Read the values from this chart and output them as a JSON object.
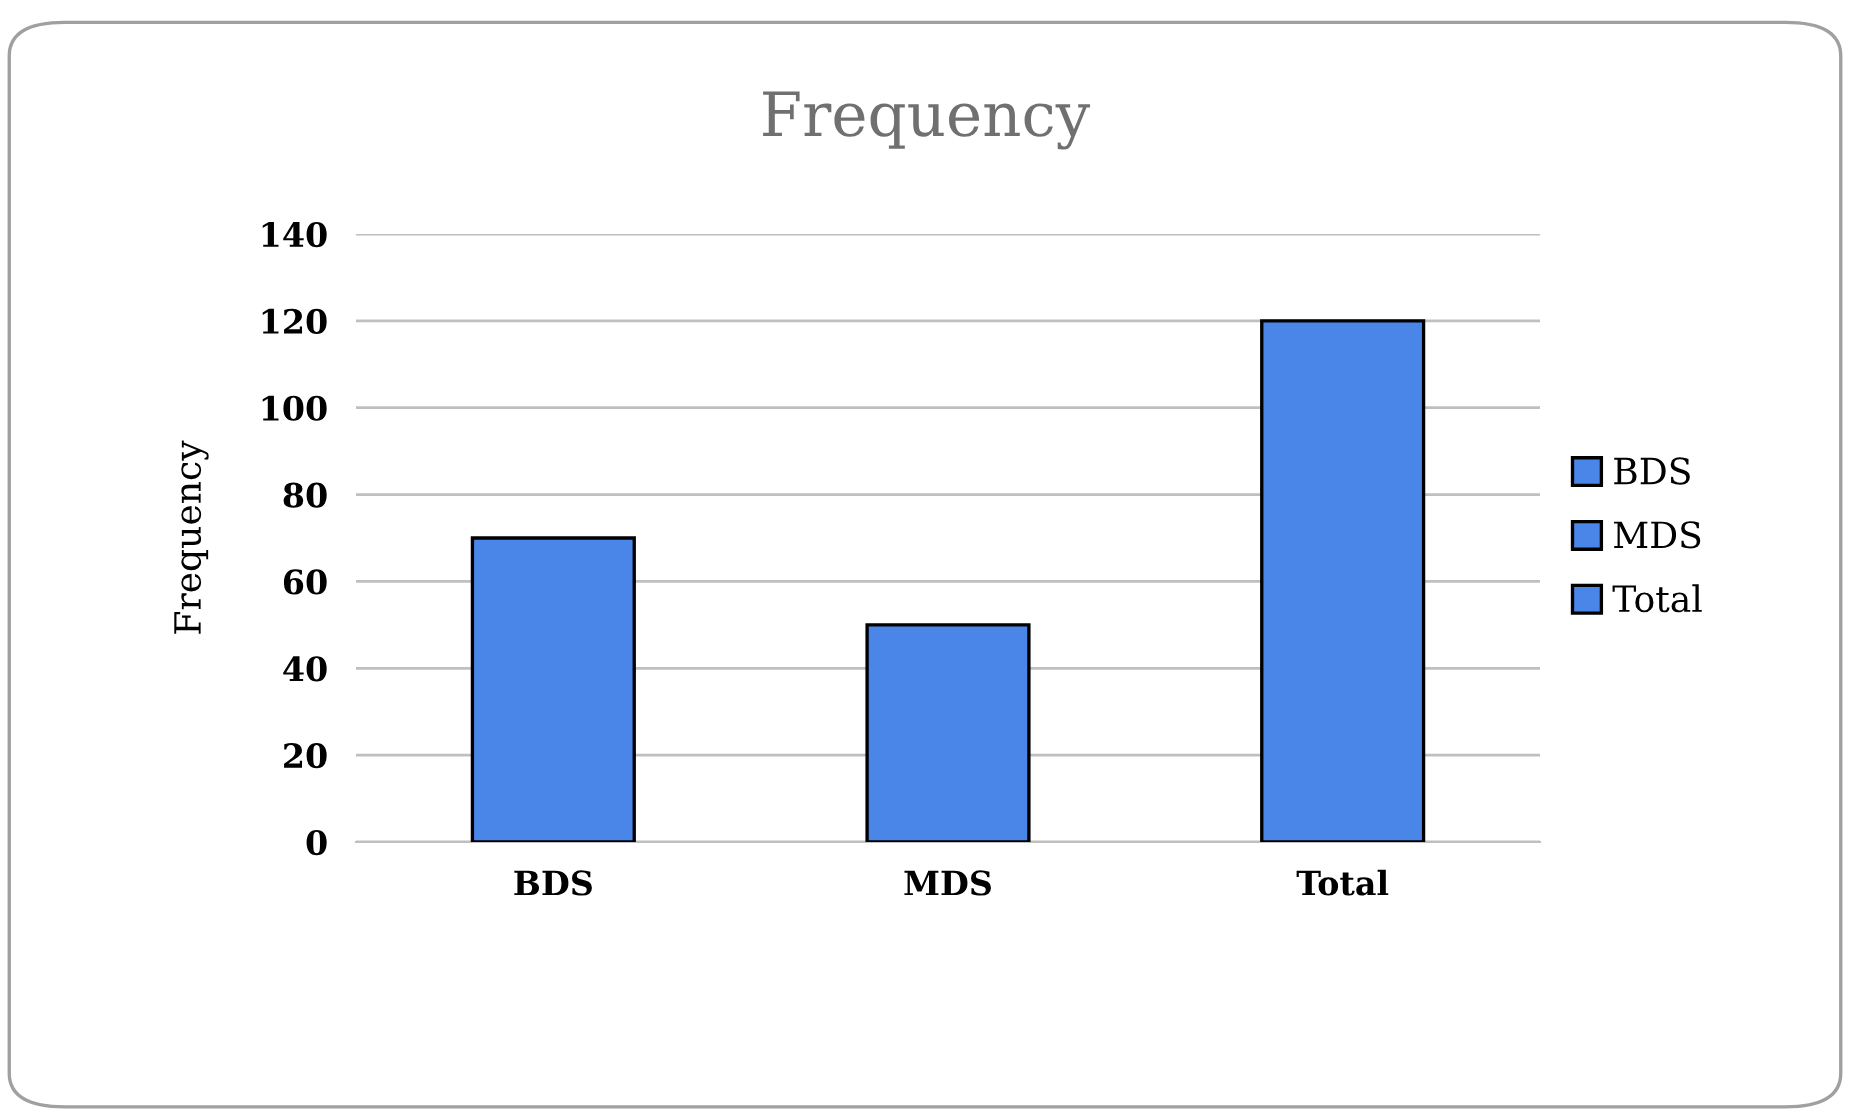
{
  "chart_data": {
    "type": "bar",
    "title": "Frequency",
    "ylabel": "Frequency",
    "categories": [
      "BDS",
      "MDS",
      "Total"
    ],
    "series": [
      {
        "name": "BDS",
        "color": "#4a86e8",
        "values": [
          70,
          null,
          null
        ]
      },
      {
        "name": "MDS",
        "color": "#4a86e8",
        "values": [
          null,
          50,
          null
        ]
      },
      {
        "name": "Total",
        "color": "#4a86e8",
        "values": [
          null,
          null,
          120
        ]
      }
    ],
    "ylim": [
      0,
      140
    ],
    "yticks": [
      0,
      20,
      40,
      60,
      80,
      100,
      120,
      140
    ],
    "grid": "y",
    "legend": "right"
  }
}
